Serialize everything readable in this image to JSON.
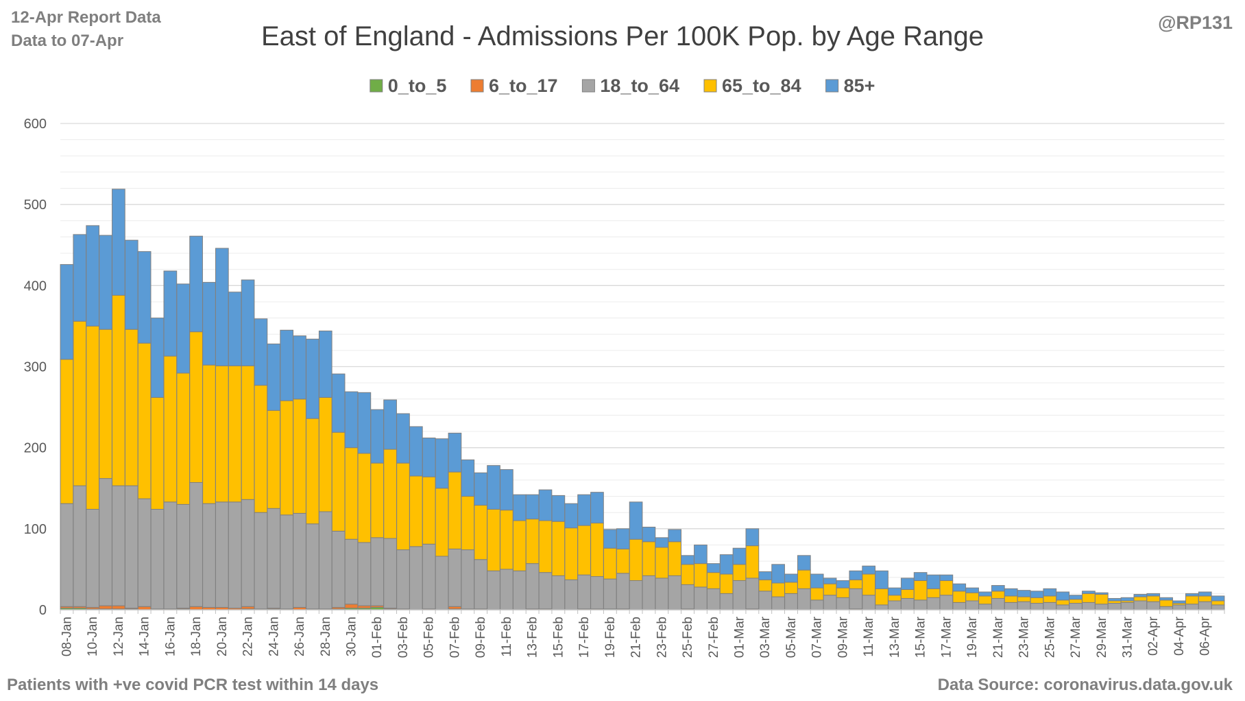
{
  "header": {
    "report_date": "12-Apr Report Data",
    "data_to": "Data to 07-Apr",
    "handle": "@RP131"
  },
  "footer": {
    "note": "Patients with  +ve covid PCR test within 14 days",
    "source": "Data Source: coronavirus.data.gov.uk"
  },
  "colors": {
    "0_to_5": "#70ad47",
    "6_to_17": "#ed7d31",
    "18_to_64": "#a5a5a5",
    "65_to_84": "#ffc000",
    "85+": "#5b9bd5",
    "gridline": "#d9d9d9",
    "bar_outline": "#808080"
  },
  "chart_data": {
    "type": "bar",
    "stacked": true,
    "title": "East of England - Admissions Per 100K Pop. by Age Range",
    "ylim": [
      0,
      600
    ],
    "y_ticks": [
      0,
      100,
      200,
      300,
      400,
      500,
      600
    ],
    "grid": true,
    "legend_position": "top",
    "x_tick_labels": [
      "08-Jan",
      "10-Jan",
      "12-Jan",
      "14-Jan",
      "16-Jan",
      "18-Jan",
      "20-Jan",
      "22-Jan",
      "24-Jan",
      "26-Jan",
      "28-Jan",
      "30-Jan",
      "01-Feb",
      "03-Feb",
      "05-Feb",
      "07-Feb",
      "09-Feb",
      "11-Feb",
      "13-Feb",
      "15-Feb",
      "17-Feb",
      "19-Feb",
      "21-Feb",
      "23-Feb",
      "25-Feb",
      "27-Feb",
      "01-Mar",
      "03-Mar",
      "05-Mar",
      "07-Mar",
      "09-Mar",
      "11-Mar",
      "13-Mar",
      "15-Mar",
      "17-Mar",
      "19-Mar",
      "21-Mar",
      "23-Mar",
      "25-Mar",
      "27-Mar",
      "29-Mar",
      "31-Mar",
      "02-Apr",
      "04-Apr",
      "06-Apr"
    ],
    "categories": [
      "08-Jan",
      "09-Jan",
      "10-Jan",
      "11-Jan",
      "12-Jan",
      "13-Jan",
      "14-Jan",
      "15-Jan",
      "16-Jan",
      "17-Jan",
      "18-Jan",
      "19-Jan",
      "20-Jan",
      "21-Jan",
      "22-Jan",
      "23-Jan",
      "24-Jan",
      "25-Jan",
      "26-Jan",
      "27-Jan",
      "28-Jan",
      "29-Jan",
      "30-Jan",
      "31-Jan",
      "01-Feb",
      "02-Feb",
      "03-Feb",
      "04-Feb",
      "05-Feb",
      "06-Feb",
      "07-Feb",
      "08-Feb",
      "09-Feb",
      "10-Feb",
      "11-Feb",
      "12-Feb",
      "13-Feb",
      "14-Feb",
      "15-Feb",
      "16-Feb",
      "17-Feb",
      "18-Feb",
      "19-Feb",
      "20-Feb",
      "21-Feb",
      "22-Feb",
      "23-Feb",
      "24-Feb",
      "25-Feb",
      "26-Feb",
      "27-Feb",
      "28-Feb",
      "01-Mar",
      "02-Mar",
      "03-Mar",
      "04-Mar",
      "05-Mar",
      "06-Mar",
      "07-Mar",
      "08-Mar",
      "09-Mar",
      "10-Mar",
      "11-Mar",
      "12-Mar",
      "13-Mar",
      "14-Mar",
      "15-Mar",
      "16-Mar",
      "17-Mar",
      "18-Mar",
      "19-Mar",
      "20-Mar",
      "21-Mar",
      "22-Mar",
      "23-Mar",
      "24-Mar",
      "25-Mar",
      "26-Mar",
      "27-Mar",
      "28-Mar",
      "29-Mar",
      "30-Mar",
      "31-Mar",
      "01-Apr",
      "02-Apr",
      "03-Apr",
      "04-Apr",
      "05-Apr",
      "06-Apr",
      "07-Apr"
    ],
    "series": [
      {
        "name": "0_to_5",
        "values": [
          2,
          2,
          1,
          1,
          1,
          1,
          0,
          0,
          0,
          1,
          0,
          0,
          0,
          0,
          1,
          0,
          1,
          0,
          0,
          0,
          0,
          1,
          2,
          2,
          3,
          1,
          0,
          0,
          0,
          0,
          1,
          0,
          0,
          0,
          0,
          0,
          0,
          0,
          0,
          0,
          0,
          0,
          1,
          0,
          0,
          0,
          0,
          0,
          0,
          0,
          0,
          0,
          0,
          0,
          0,
          0,
          0,
          0,
          0,
          0,
          0,
          0,
          0,
          0,
          0,
          0,
          0,
          0,
          0,
          0,
          0,
          0,
          0,
          0,
          0,
          0,
          0,
          0,
          0,
          0,
          0,
          0,
          0,
          0,
          0,
          0,
          0,
          0,
          0,
          0
        ]
      },
      {
        "name": "6_to_17",
        "values": [
          2,
          2,
          2,
          4,
          4,
          1,
          4,
          1,
          1,
          1,
          4,
          3,
          3,
          2,
          3,
          1,
          1,
          1,
          3,
          1,
          1,
          2,
          5,
          3,
          2,
          1,
          1,
          0,
          1,
          0,
          3,
          1,
          1,
          0,
          0,
          0,
          1,
          1,
          0,
          0,
          1,
          1,
          0,
          1,
          0,
          0,
          0,
          0,
          1,
          0,
          0,
          0,
          0,
          1,
          0,
          0,
          0,
          0,
          0,
          0,
          0,
          1,
          0,
          0,
          0,
          0,
          0,
          0,
          0,
          0,
          0,
          0,
          0,
          0,
          0,
          0,
          0,
          0,
          0,
          0,
          0,
          0,
          0,
          0,
          0,
          0,
          0,
          0,
          0,
          0
        ]
      },
      {
        "name": "18_to_64",
        "values": [
          127,
          149,
          121,
          157,
          148,
          151,
          133,
          123,
          132,
          128,
          153,
          128,
          130,
          131,
          132,
          119,
          123,
          116,
          116,
          105,
          120,
          94,
          80,
          78,
          84,
          86,
          73,
          78,
          80,
          66,
          71,
          73,
          61,
          48,
          50,
          48,
          56,
          45,
          42,
          37,
          42,
          40,
          37,
          44,
          36,
          42,
          39,
          42,
          30,
          28,
          26,
          20,
          36,
          38,
          23,
          16,
          20,
          26,
          12,
          18,
          15,
          25,
          18,
          6,
          11,
          14,
          12,
          15,
          18,
          9,
          11,
          7,
          14,
          9,
          10,
          8,
          9,
          6,
          8,
          9,
          7,
          8,
          9,
          11,
          10,
          4,
          6,
          7,
          10,
          6
        ]
      },
      {
        "name": "65_to_84",
        "values": [
          178,
          203,
          226,
          184,
          235,
          193,
          192,
          138,
          180,
          162,
          186,
          171,
          168,
          168,
          165,
          157,
          121,
          141,
          141,
          130,
          141,
          122,
          113,
          110,
          92,
          110,
          107,
          87,
          83,
          84,
          95,
          66,
          67,
          76,
          73,
          62,
          55,
          64,
          67,
          64,
          61,
          66,
          38,
          30,
          51,
          42,
          38,
          42,
          25,
          29,
          20,
          24,
          20,
          40,
          14,
          17,
          14,
          23,
          15,
          14,
          12,
          11,
          26,
          20,
          7,
          11,
          24,
          11,
          18,
          14,
          10,
          10,
          9,
          8,
          6,
          7,
          8,
          6,
          5,
          11,
          12,
          3,
          2,
          5,
          7,
          8,
          2,
          10,
          7,
          5
        ]
      },
      {
        "name": "85+",
        "values": [
          117,
          107,
          124,
          116,
          131,
          110,
          113,
          98,
          105,
          110,
          118,
          102,
          145,
          91,
          106,
          82,
          82,
          87,
          78,
          98,
          82,
          72,
          69,
          75,
          66,
          61,
          61,
          61,
          48,
          61,
          48,
          45,
          40,
          54,
          50,
          32,
          30,
          38,
          32,
          30,
          38,
          38,
          23,
          25,
          46,
          18,
          12,
          15,
          11,
          23,
          11,
          24,
          20,
          21,
          10,
          23,
          10,
          18,
          17,
          7,
          9,
          11,
          10,
          22,
          9,
          14,
          10,
          17,
          7,
          9,
          6,
          5,
          7,
          9,
          8,
          8,
          9,
          10,
          5,
          3,
          2,
          3,
          4,
          3,
          3,
          3,
          3,
          3,
          5,
          6
        ]
      }
    ]
  }
}
